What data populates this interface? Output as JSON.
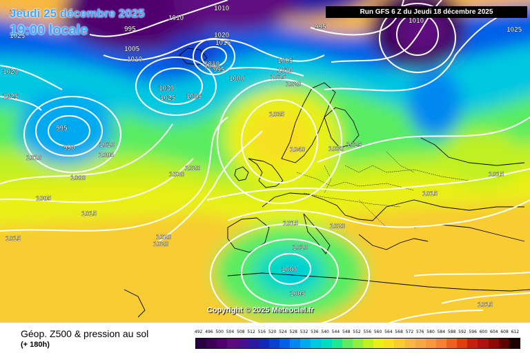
{
  "header": {
    "run": "Run GFS 6 Z du Jeudi 18 décembre 2025",
    "date": "Jeudi 25 décembre 2025",
    "time": "19:00 locale"
  },
  "copyright": "Copyright © 2025 Meteociel.fr",
  "legend": {
    "title": "Géop. Z500 & pression au sol",
    "subtitle": "(+ 180h)",
    "scale": [
      "492",
      "496",
      "500",
      "504",
      "508",
      "512",
      "516",
      "520",
      "524",
      "528",
      "532",
      "536",
      "540",
      "544",
      "548",
      "552",
      "556",
      "560",
      "564",
      "568",
      "572",
      "576",
      "580",
      "584",
      "588",
      "592",
      "596",
      "600",
      "604",
      "608",
      "612"
    ],
    "colors": [
      "#2a0040",
      "#3c0057",
      "#4f006e",
      "#5f0a7f",
      "#47108e",
      "#2c1aa0",
      "#1428b8",
      "#0840d0",
      "#0060e8",
      "#0088f0",
      "#00aaf0",
      "#00c8e0",
      "#00dcc0",
      "#20e690",
      "#5aec60",
      "#90ee40",
      "#c0f020",
      "#e8f018",
      "#f8e020",
      "#f8cc30",
      "#f8b840",
      "#f8a840",
      "#f89838",
      "#f88030",
      "#f06020",
      "#e04010",
      "#c82010",
      "#b01010",
      "#900808",
      "#600000",
      "#200000"
    ]
  },
  "isobars": [
    {
      "text": "1025"
    },
    {
      "text": "995"
    },
    {
      "text": "1010"
    },
    {
      "text": "1010"
    },
    {
      "text": "1005"
    },
    {
      "text": "1010"
    },
    {
      "text": "1020"
    },
    {
      "text": "1015"
    },
    {
      "text": "1010"
    },
    {
      "text": "1000"
    },
    {
      "text": "995"
    },
    {
      "text": "995"
    },
    {
      "text": "1005"
    },
    {
      "text": "1010"
    },
    {
      "text": "1015"
    },
    {
      "text": "1000"
    },
    {
      "text": "1020"
    },
    {
      "text": "1030"
    },
    {
      "text": "1025"
    },
    {
      "text": "1005"
    },
    {
      "text": "1020"
    },
    {
      "text": "1025"
    },
    {
      "text": "995"
    },
    {
      "text": "990"
    },
    {
      "text": "1010"
    },
    {
      "text": "1005"
    },
    {
      "text": "1010"
    },
    {
      "text": "1000"
    },
    {
      "text": "1005"
    },
    {
      "text": "1025"
    },
    {
      "text": "1015"
    },
    {
      "text": "1015"
    },
    {
      "text": "1030"
    },
    {
      "text": "1020"
    },
    {
      "text": "1035"
    },
    {
      "text": "1040"
    },
    {
      "text": "1030"
    },
    {
      "text": "1025"
    },
    {
      "text": "1015"
    },
    {
      "text": "1015"
    },
    {
      "text": "1020"
    },
    {
      "text": "1020"
    },
    {
      "text": "1015"
    },
    {
      "text": "1020"
    },
    {
      "text": "1010"
    },
    {
      "text": "1000"
    },
    {
      "text": "1005"
    },
    {
      "text": "1010"
    },
    {
      "text": "1015"
    },
    {
      "text": "1010"
    },
    {
      "text": "1025"
    }
  ]
}
